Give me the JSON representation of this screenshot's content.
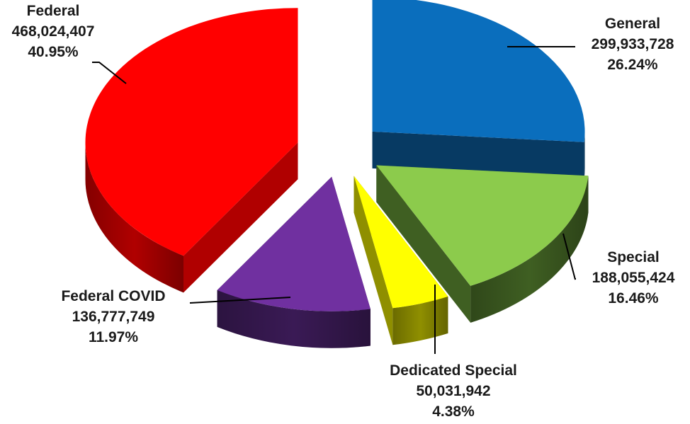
{
  "chart_data": {
    "type": "pie",
    "style": "3d-exploded",
    "title": "",
    "slices": [
      {
        "label": "General",
        "value": 299933728,
        "value_label": "299,933,728",
        "percent": 26.24,
        "percent_label": "26.24%",
        "color": "#0A6EBD",
        "side_color": "#073A63"
      },
      {
        "label": "Special",
        "value": 188055424,
        "value_label": "188,055,424",
        "percent": 16.46,
        "percent_label": "16.46%",
        "color": "#8CCB4C",
        "side_color": "#3F5F22"
      },
      {
        "label": "Dedicated Special",
        "value": 50031942,
        "value_label": "50,031,942",
        "percent": 4.38,
        "percent_label": "4.38%",
        "color": "#FFFF00",
        "side_color": "#8F8F00"
      },
      {
        "label": "Federal COVID",
        "value": 136777749,
        "value_label": "136,777,749",
        "percent": 11.97,
        "percent_label": "11.97%",
        "color": "#7030A0",
        "side_color": "#3A1A55"
      },
      {
        "label": "Federal",
        "value": 468024407,
        "value_label": "468,024,407",
        "percent": 40.95,
        "percent_label": "40.95%",
        "color": "#FF0000",
        "side_color": "#B00000"
      }
    ]
  }
}
